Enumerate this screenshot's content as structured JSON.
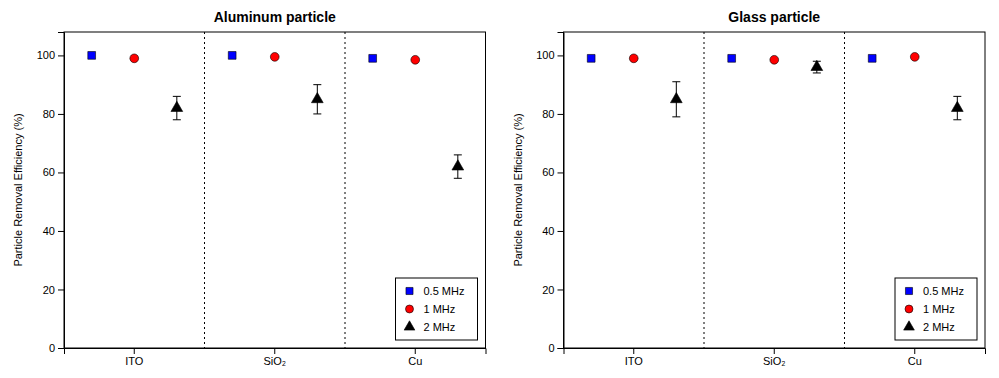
{
  "chart_data": [
    {
      "type": "scatter",
      "title": "Aluminum particle",
      "y_label": "Particle Removal Efficiency (%)",
      "categories": [
        "ITO",
        "SiO₂",
        "Cu"
      ],
      "series": [
        {
          "name": "0.5 MHz",
          "color": "#0000FF",
          "marker": "square",
          "values": [
            100,
            100,
            99
          ]
        },
        {
          "name": "1 MHz",
          "color": "#FF0000",
          "marker": "circle",
          "values": [
            99,
            99.5,
            98.5
          ]
        },
        {
          "name": "2 MHz",
          "color": "#000000",
          "marker": "triangle",
          "values": [
            82,
            85,
            62
          ],
          "errors": [
            4,
            5,
            4
          ]
        }
      ],
      "ylim": [
        0,
        108
      ],
      "yticks": [
        0,
        20,
        40,
        60,
        80,
        100
      ],
      "grid": false,
      "legend": "lower right"
    },
    {
      "type": "scatter",
      "title": "Glass particle",
      "y_label": "Particle Removal Efficiency (%)",
      "categories": [
        "ITO",
        "SiO₂",
        "Cu"
      ],
      "series": [
        {
          "name": "0.5 MHz",
          "color": "#0000FF",
          "marker": "square",
          "values": [
            99,
            99,
            99
          ]
        },
        {
          "name": "1 MHz",
          "color": "#FF0000",
          "marker": "circle",
          "values": [
            99,
            98.5,
            99.5
          ]
        },
        {
          "name": "2 MHz",
          "color": "#000000",
          "marker": "triangle",
          "values": [
            85,
            96,
            82
          ],
          "errors": [
            6,
            2,
            4
          ]
        }
      ],
      "ylim": [
        0,
        108
      ],
      "yticks": [
        0,
        20,
        40,
        60,
        80,
        100
      ],
      "grid": false,
      "legend": "lower right"
    }
  ]
}
